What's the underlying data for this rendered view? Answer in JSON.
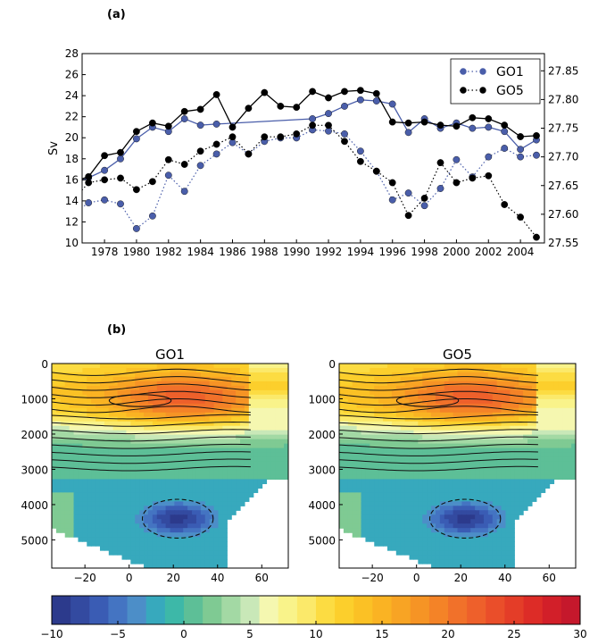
{
  "figure": {
    "panel_a_label": "(a)",
    "panel_b_label": "(b)"
  },
  "chart_data": [
    {
      "type": "line",
      "ylabel": "Sv",
      "ylim": [
        10,
        28
      ],
      "yticks": [
        10,
        12,
        14,
        16,
        18,
        20,
        22,
        24,
        26,
        28
      ],
      "xlim": [
        1976.6,
        2005.5
      ],
      "xticks": [
        1978,
        1980,
        1982,
        1984,
        1986,
        1988,
        1990,
        1992,
        1994,
        1996,
        1998,
        2000,
        2002,
        2004
      ],
      "y2lim": [
        27.55,
        27.88
      ],
      "y2ticks": [
        27.55,
        27.6,
        27.65,
        27.7,
        27.75,
        27.8,
        27.85
      ],
      "legend_position": "top-right",
      "grid": false,
      "series": [
        {
          "name": "GO1",
          "axis": "left",
          "style": "solid",
          "color": "#4a5eaa",
          "x": [
            1976,
            1977,
            1978,
            1979,
            1980,
            1981,
            1982,
            1983,
            1984,
            1985,
            1991,
            1992,
            1993,
            1994,
            1995,
            1996,
            1997,
            1998,
            1999,
            2000,
            2001,
            2002,
            2003,
            2004,
            2005
          ],
          "values": [
            15.6,
            16.2,
            16.9,
            18.0,
            19.9,
            21.0,
            20.6,
            21.8,
            21.2,
            21.3,
            21.8,
            22.3,
            23.0,
            23.6,
            23.5,
            23.2,
            20.5,
            21.8,
            20.9,
            21.4,
            20.9,
            21.0,
            20.6,
            18.9,
            19.8
          ]
        },
        {
          "name": "GO5",
          "axis": "left",
          "style": "solid",
          "color": "#000000",
          "x": [
            1976,
            1977,
            1978,
            1979,
            1980,
            1981,
            1982,
            1983,
            1984,
            1985,
            1986,
            1987,
            1988,
            1989,
            1990,
            1991,
            1992,
            1993,
            1994,
            1995,
            1996,
            1997,
            1998,
            1999,
            2000,
            2001,
            2002,
            2003,
            2004,
            2005
          ],
          "values": [
            15.8,
            16.3,
            18.3,
            18.6,
            20.6,
            21.4,
            21.1,
            22.5,
            22.7,
            24.1,
            21.0,
            22.8,
            24.3,
            23.0,
            22.9,
            24.4,
            23.8,
            24.4,
            24.5,
            24.2,
            21.5,
            21.4,
            21.5,
            21.2,
            21.1,
            21.9,
            21.8,
            21.2,
            20.1,
            20.2
          ]
        },
        {
          "name": "GO1",
          "axis": "right",
          "style": "dotted",
          "color": "#4a5eaa",
          "x": [
            1976,
            1977,
            1978,
            1979,
            1980,
            1981,
            1982,
            1983,
            1984,
            1985,
            1986,
            1987,
            1988,
            1989,
            1990,
            1991,
            1992,
            1993,
            1994,
            1995,
            1996,
            1997,
            1998,
            1999,
            2000,
            2001,
            2002,
            2003,
            2004,
            2005
          ],
          "values": [
            27.6,
            27.62,
            27.625,
            27.618,
            27.575,
            27.597,
            27.668,
            27.64,
            27.685,
            27.705,
            27.725,
            27.705,
            27.727,
            27.733,
            27.733,
            27.747,
            27.745,
            27.74,
            27.71,
            27.675,
            27.625,
            27.637,
            27.615,
            27.645,
            27.695,
            27.665,
            27.7,
            27.715,
            27.7,
            27.703
          ]
        },
        {
          "name": "GO5",
          "axis": "right",
          "style": "dotted",
          "color": "#000000",
          "x": [
            1976,
            1977,
            1978,
            1979,
            1980,
            1981,
            1982,
            1983,
            1984,
            1985,
            1986,
            1987,
            1988,
            1989,
            1990,
            1991,
            1992,
            1993,
            1994,
            1995,
            1996,
            1997,
            1998,
            1999,
            2000,
            2001,
            2002,
            2003,
            2004,
            2005
          ],
          "values": [
            27.623,
            27.655,
            27.66,
            27.663,
            27.643,
            27.657,
            27.695,
            27.687,
            27.71,
            27.722,
            27.735,
            27.705,
            27.735,
            27.735,
            27.74,
            27.755,
            27.755,
            27.727,
            27.692,
            27.675,
            27.655,
            27.598,
            27.628,
            27.69,
            27.655,
            27.663,
            27.667,
            27.617,
            27.595,
            27.56
          ]
        }
      ]
    },
    {
      "type": "heatmap",
      "title": "GO1",
      "xlim": [
        -35,
        72
      ],
      "xticks": [
        -20,
        0,
        20,
        40,
        60
      ],
      "ylim": [
        5800,
        0
      ],
      "yticks": [
        0,
        1000,
        2000,
        3000,
        4000,
        5000
      ]
    },
    {
      "type": "heatmap",
      "title": "GO5",
      "xlim": [
        -35,
        72
      ],
      "xticks": [
        -20,
        0,
        20,
        40,
        60
      ],
      "ylim": [
        5800,
        0
      ],
      "yticks": [
        0,
        1000,
        2000,
        3000,
        4000,
        5000
      ]
    },
    {
      "type": "colorbar",
      "range": [
        -10,
        30
      ],
      "ticks": [
        -10,
        -5,
        0,
        5,
        10,
        15,
        20,
        25,
        30
      ],
      "tick_labels": [
        "−10",
        "−5",
        "0",
        "5",
        "10",
        "15",
        "20",
        "25",
        "30"
      ]
    }
  ]
}
